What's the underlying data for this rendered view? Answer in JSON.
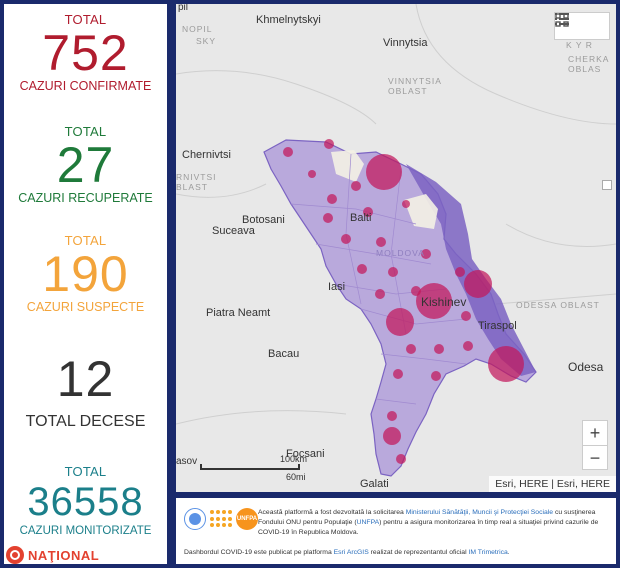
{
  "stats": {
    "confirmed": {
      "label": "TOTAL",
      "value": "752",
      "caption": "CAZURI CONFIRMATE",
      "color": "#b01c2e"
    },
    "recovered": {
      "label": "TOTAL",
      "value": "27",
      "caption": "CAZURI RECUPERATE",
      "color": "#1f7a3a"
    },
    "suspected": {
      "label": "TOTAL",
      "value": "190",
      "caption": "CAZURI SUSPECTE",
      "color": "#f3a43b"
    },
    "deaths": {
      "value": "12",
      "caption": "TOTAL DECESE",
      "color": "#333333"
    },
    "monitored": {
      "label": "TOTAL",
      "value": "36558",
      "caption": "CAZURI MONITORIZATE",
      "color": "#1b7f8a"
    }
  },
  "brand": {
    "name": "NAŢIONAL",
    "color": "#e3412f"
  },
  "map": {
    "places": {
      "khmelnytskyi": "Khmelnytskyi",
      "vinnytsia": "Vinnytsia",
      "chernivtsi": "Chernivtsi",
      "botosani": "Botosani",
      "suceava": "Suceava",
      "balti": "Balti",
      "iasi": "Iasi",
      "kishinev": "Kishinev",
      "tiraspol": "Tiraspol",
      "piatra_neamt": "Piatra Neamt",
      "bacau": "Bacau",
      "odesa": "Odesa",
      "focsani": "Focsani",
      "galati": "Galati",
      "moldova": "MOLDOVA"
    },
    "regions": {
      "nopil": "NOPIL",
      "sky": "SKY",
      "vinnytsia_oblast": "VINNYTSIA\nOBLAST",
      "cherka_oblas": "CHERKA\nOBLAS",
      "rnivtsi_blast": "RNIVTSI\nBLAST",
      "odessa_oblast": "ODESSA OBLAST",
      "kyr": "K Y R"
    },
    "edge_labels": {
      "pil": "pil",
      "asov": "asov"
    },
    "scale": {
      "km": "100km",
      "mi": "60mi"
    },
    "zoom_in": "+",
    "zoom_out": "−",
    "attribution": "Esri, HERE | Esri, HERE",
    "tools": [
      "list-icon",
      "qr-grid-icon"
    ],
    "colors": {
      "country_fill": "#b9a9dc",
      "dark_zone": "#7b63c2",
      "bubble": "#c2185b"
    }
  },
  "footer": {
    "logos": {
      "unfpa": "UNFPA"
    },
    "line1_a": "Această platformă a fost dezvoltată la solicitarea ",
    "line1_link": "Ministerului Sănătăţii, Muncii şi Protecţiei Sociale",
    "line1_b": " cu susţinerea Fondului ONU pentru Populaţie (",
    "line1_link2": "UNFPA",
    "line1_c": ") pentru a asigura monitorizarea în timp real a situaţiei privind cazurile de COVID-19 în Republica Moldova.",
    "line2_a": "Dashbordul COVID-19 este publicat pe platforma ",
    "line2_link": "Esri ArcGIS",
    "line2_b": " realizat de reprezentantul oficial ",
    "line2_link2": "IM Trimetrica",
    "line2_c": "."
  }
}
